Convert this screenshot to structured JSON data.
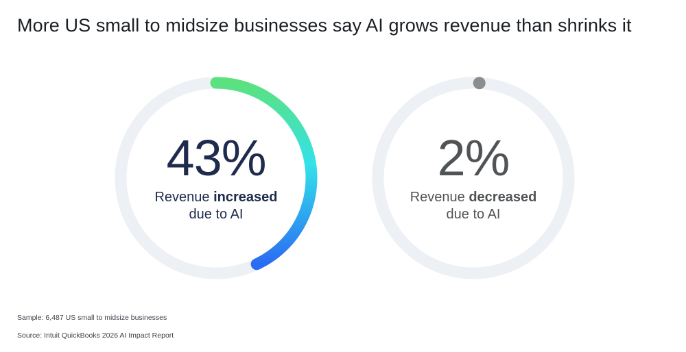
{
  "title": "More US small to midsize businesses say AI grows revenue than shrinks it",
  "colors": {
    "track": "#edf0f4",
    "gradient_start": "#5be27f",
    "gradient_mid": "#33e2ea",
    "gradient_end": "#2a6cf2",
    "decrease_marker": "#8a8c8e",
    "increase_text": "#1e2b4c",
    "decrease_text": "#515457"
  },
  "chart_data": [
    {
      "type": "pie",
      "value": 43,
      "value_label": "43%",
      "label_prefix": "Revenue",
      "label_bold": "increased",
      "label_suffix": "due to AI"
    },
    {
      "type": "pie",
      "value": 2,
      "value_label": "2%",
      "label_prefix": "Revenue",
      "label_bold": "decreased",
      "label_suffix": "due to AI"
    }
  ],
  "footer": {
    "sample": "Sample: 6,487 US small to midsize businesses",
    "source": "Source: Intuit QuickBooks 2026 AI Impact Report"
  }
}
